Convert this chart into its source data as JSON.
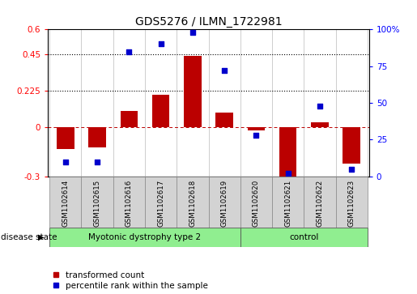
{
  "title": "GDS5276 / ILMN_1722981",
  "samples": [
    "GSM1102614",
    "GSM1102615",
    "GSM1102616",
    "GSM1102617",
    "GSM1102618",
    "GSM1102619",
    "GSM1102620",
    "GSM1102621",
    "GSM1102622",
    "GSM1102623"
  ],
  "transformed_count": [
    -0.13,
    -0.12,
    0.1,
    0.2,
    0.44,
    0.09,
    -0.02,
    -0.32,
    0.03,
    -0.22
  ],
  "percentile_rank": [
    10,
    10,
    85,
    90,
    98,
    72,
    28,
    2,
    48,
    5
  ],
  "disease_groups": [
    {
      "label": "Myotonic dystrophy type 2",
      "start": 0,
      "end": 6,
      "color": "#90EE90"
    },
    {
      "label": "control",
      "start": 6,
      "end": 10,
      "color": "#90EE90"
    }
  ],
  "left_ylim": [
    -0.3,
    0.6
  ],
  "right_ylim": [
    0,
    100
  ],
  "left_yticks": [
    -0.3,
    0,
    0.225,
    0.45,
    0.6
  ],
  "right_yticks": [
    0,
    25,
    50,
    75,
    100
  ],
  "left_ytick_labels": [
    "-0.3",
    "0",
    "0.225",
    "0.45",
    "0.6"
  ],
  "right_ytick_labels": [
    "0",
    "25",
    "50",
    "75",
    "100%"
  ],
  "hlines": [
    0.225,
    0.45
  ],
  "bar_color": "#BB0000",
  "dot_color": "#0000CC",
  "bar_width": 0.55,
  "legend_labels": [
    "transformed count",
    "percentile rank within the sample"
  ],
  "legend_colors": [
    "#BB0000",
    "#0000CC"
  ],
  "disease_state_label": "disease state",
  "box_color": "#D3D3D3",
  "green_color": "#90EE90"
}
